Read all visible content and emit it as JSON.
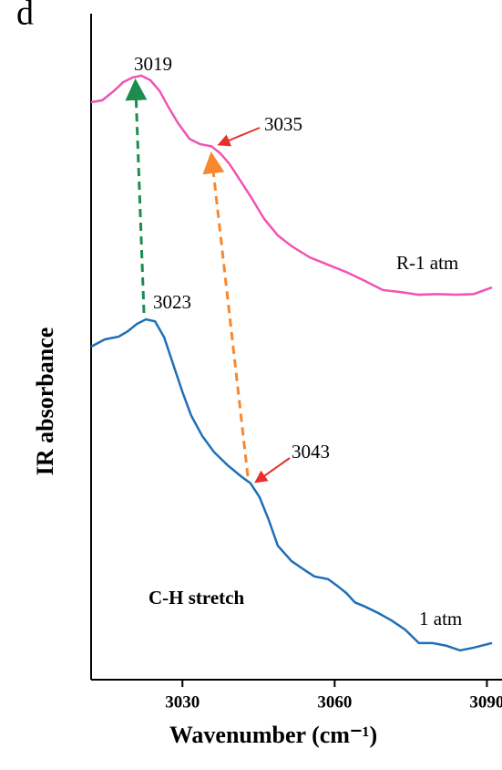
{
  "chart_data": {
    "type": "line",
    "panel_label": "d",
    "xlabel": "Wavenumber (cm⁻¹)",
    "ylabel": "IR absorbance",
    "xlim": [
      3012,
      3091
    ],
    "xticks": [
      3030,
      3060,
      3090
    ],
    "ylim": [
      0,
      100
    ],
    "annotations": [
      "3019",
      "3035",
      "3023",
      "3043",
      "R-1 atm",
      "1 atm",
      "C-H stretch"
    ],
    "series": [
      {
        "name": "R-1 atm",
        "color": "#f053b4",
        "x": [
          3012,
          3014.2,
          3016.5,
          3018.3,
          3020.1,
          3021.9,
          3023.7,
          3025.5,
          3027.3,
          3029.1,
          3031.4,
          3033.5,
          3035.7,
          3037.5,
          3039.3,
          3041.1,
          3043.4,
          3046.1,
          3048.8,
          3051.5,
          3055.1,
          3058.7,
          3062.3,
          3065.9,
          3069.5,
          3073.0,
          3076.6,
          3080.2,
          3083.8,
          3087.4,
          3091
        ],
        "values": [
          86.7,
          87.0,
          88.4,
          89.7,
          90.4,
          90.7,
          90.0,
          88.4,
          85.9,
          83.6,
          81.2,
          80.4,
          80.1,
          79.0,
          77.4,
          75.3,
          72.6,
          69.2,
          66.7,
          65.1,
          63.4,
          62.3,
          61.2,
          59.9,
          58.5,
          58.2,
          57.8,
          57.9,
          57.8,
          57.9,
          58.9
        ]
      },
      {
        "name": "1 atm",
        "color": "#1f6fb8",
        "x": [
          3012,
          3014.7,
          3017.4,
          3019.2,
          3021,
          3022.8,
          3024.6,
          3026.4,
          3028.2,
          3030,
          3031.7,
          3033.9,
          3036.2,
          3038.9,
          3041.6,
          3043.4,
          3045.2,
          3047,
          3048.8,
          3051.5,
          3054.2,
          3056,
          3058.7,
          3060.5,
          3062.3,
          3064,
          3065.9,
          3068.6,
          3071.2,
          3073.9,
          3076.6,
          3079.3,
          3082,
          3084.7,
          3087.4,
          3091
        ],
        "values": [
          50.0,
          51.1,
          51.5,
          52.3,
          53.4,
          54.1,
          53.8,
          51.4,
          47.3,
          43.2,
          39.7,
          36.6,
          34.2,
          32.2,
          30.5,
          29.5,
          27.4,
          24.0,
          20.1,
          17.8,
          16.4,
          15.5,
          15.1,
          14.1,
          13.0,
          11.6,
          11.0,
          10.0,
          8.9,
          7.5,
          5.5,
          5.5,
          5.1,
          4.4,
          4.8,
          5.5
        ]
      }
    ]
  }
}
